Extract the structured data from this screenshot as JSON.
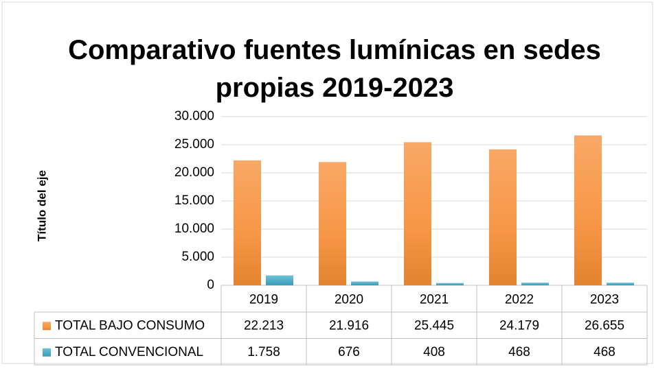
{
  "chart_data": {
    "type": "bar",
    "title": "Comparativo fuentes lumínicas en sedes propias 2019-2023",
    "y_label": "Título del eje",
    "categories": [
      "2019",
      "2020",
      "2021",
      "2022",
      "2023"
    ],
    "series": [
      {
        "name": "TOTAL BAJO CONSUMO",
        "color": "#f79646",
        "values": [
          22213,
          21916,
          25445,
          24179,
          26655
        ],
        "value_labels": [
          "22.213",
          "21.916",
          "25.445",
          "24.179",
          "26.655"
        ]
      },
      {
        "name": "TOTAL CONVENCIONAL",
        "color": "#4bacc6",
        "values": [
          1758,
          676,
          408,
          468,
          468
        ],
        "value_labels": [
          "1.758",
          "676",
          "408",
          "468",
          "468"
        ]
      }
    ],
    "ylim": [
      0,
      30000
    ],
    "yticks": [
      0,
      {
        "value": 5000,
        "label": "5.000"
      },
      {
        "value": 10000,
        "label": "10.000"
      },
      {
        "value": 15000,
        "label": "15.000"
      },
      {
        "value": 20000,
        "label": "20.000"
      },
      {
        "value": 25000,
        "label": "25.000"
      },
      {
        "value": 30000,
        "label": "30.000"
      }
    ],
    "grid": true
  }
}
